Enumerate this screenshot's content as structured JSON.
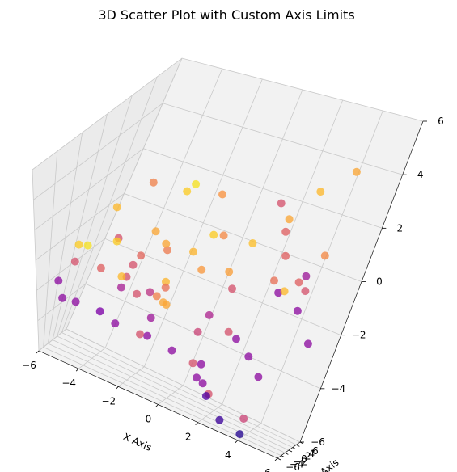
{
  "chart_data": {
    "type": "scatter",
    "title": "3D Scatter Plot with Custom Axis Limits",
    "xlabel": "X Axis",
    "ylabel": "Y Axis",
    "zlabel": "",
    "xlim": [
      -6,
      6
    ],
    "ylim": [
      -6,
      6
    ],
    "zlim": [
      -6,
      6
    ],
    "xticks": [
      -6,
      -4,
      -2,
      0,
      2,
      4,
      6
    ],
    "yticks": [
      -6,
      -4,
      -2,
      0,
      2,
      4,
      6
    ],
    "zticks": [
      -6,
      -4,
      -2,
      0,
      2,
      4,
      6
    ],
    "xtick_labels": [
      "−6",
      "−4",
      "−2",
      "0",
      "2",
      "4",
      "6"
    ],
    "ytick_labels": [
      "−6",
      "−4",
      "−2",
      "0",
      "2",
      "4",
      "6"
    ],
    "ztick_labels": [
      "−6",
      "−4",
      "−2",
      "0",
      "2",
      "4",
      "6"
    ],
    "colormap": "plasma",
    "grid": true,
    "points": [
      [
        -0.4,
        -2.7,
        4.8,
        0.9
      ],
      [
        0.7,
        -1.4,
        4.4,
        0.75
      ],
      [
        -1.1,
        -0.2,
        3.9,
        0.95
      ],
      [
        -3.2,
        0.2,
        3.2,
        0.7
      ],
      [
        -3.7,
        -2.3,
        2.7,
        0.85
      ],
      [
        4.2,
        5.0,
        4.0,
        0.8
      ],
      [
        3.3,
        3.7,
        3.4,
        0.85
      ],
      [
        -0.8,
        -3.3,
        2.1,
        0.8
      ],
      [
        0.6,
        0.2,
        1.8,
        0.72
      ],
      [
        3.2,
        1.8,
        1.2,
        0.6
      ],
      [
        1.8,
        0.9,
        1.6,
        0.87
      ],
      [
        -4.9,
        -3.3,
        0.5,
        0.9
      ],
      [
        -4.7,
        -2.6,
        0.3,
        0.95
      ],
      [
        -2.6,
        -2.1,
        -0.1,
        0.55
      ],
      [
        -2.3,
        -0.6,
        1.3,
        0.8
      ],
      [
        -0.4,
        -0.5,
        0.9,
        0.84
      ],
      [
        -2.5,
        -3.2,
        -0.4,
        0.55
      ],
      [
        -1.2,
        -3.6,
        -0.6,
        0.45
      ],
      [
        3.8,
        3.3,
        -0.1,
        0.6
      ],
      [
        3.3,
        3.2,
        -0.6,
        0.85
      ],
      [
        1.9,
        5.5,
        0.9,
        0.6
      ],
      [
        1.4,
        4.8,
        2.1,
        0.55
      ],
      [
        -1.8,
        0.2,
        0.3,
        0.68
      ],
      [
        -3.4,
        -2.5,
        1.0,
        0.9
      ],
      [
        -3.7,
        -1.4,
        0.7,
        0.55
      ],
      [
        -4.9,
        -3.6,
        -0.4,
        0.55
      ],
      [
        -4.3,
        -1.2,
        -1.2,
        0.6
      ],
      [
        -3.0,
        -2.0,
        -1.5,
        0.38
      ],
      [
        -1.2,
        -2.8,
        -2.2,
        0.35
      ],
      [
        -1.4,
        -0.3,
        -1.0,
        0.84
      ],
      [
        -2.6,
        -1.1,
        0.1,
        0.62
      ],
      [
        -0.9,
        -1.4,
        -1.7,
        0.8
      ],
      [
        1.2,
        1.9,
        -0.9,
        0.55
      ],
      [
        3.7,
        4.8,
        -0.2,
        0.35
      ],
      [
        2.7,
        5.0,
        -1.2,
        0.3
      ],
      [
        3.9,
        4.7,
        -1.5,
        0.3
      ],
      [
        4.8,
        5.3,
        -2.6,
        0.3
      ],
      [
        1.6,
        2.0,
        -2.7,
        0.55
      ],
      [
        0.9,
        -0.1,
        -1.8,
        0.4
      ],
      [
        0.3,
        1.5,
        -3.1,
        0.5
      ],
      [
        1.7,
        4.3,
        -3.3,
        0.3
      ],
      [
        -3.5,
        -3.5,
        -2.7,
        0.25
      ],
      [
        -4.5,
        -4.4,
        -2.4,
        0.3
      ],
      [
        -5.5,
        -4.0,
        -1.7,
        0.3
      ],
      [
        -5.3,
        -3.8,
        -2.7,
        0.3
      ],
      [
        -2.7,
        -3.6,
        -3.0,
        0.3
      ],
      [
        -1.5,
        -3.4,
        -3.1,
        0.55
      ],
      [
        -1.4,
        -2.0,
        -3.4,
        0.3
      ],
      [
        -0.2,
        -1.6,
        -3.7,
        0.3
      ],
      [
        0.8,
        -1.0,
        -4.0,
        0.55
      ],
      [
        1.1,
        -0.9,
        -4.6,
        0.3
      ],
      [
        0.9,
        1.2,
        -4.3,
        0.3
      ],
      [
        2.7,
        2.9,
        -3.5,
        0.3
      ],
      [
        3.5,
        2.3,
        -4.0,
        0.3
      ],
      [
        1.8,
        -0.8,
        -5.1,
        0.55
      ],
      [
        1.6,
        -2.2,
        -4.5,
        0.3
      ],
      [
        2.1,
        -4.1,
        -4.7,
        0.15
      ],
      [
        2.8,
        -3.5,
        -5.7,
        0.1
      ],
      [
        3.8,
        -2.9,
        -6.0,
        0.05
      ],
      [
        4.1,
        -4.8,
        -4.9,
        0.5
      ],
      [
        0.3,
        -1.0,
        0.4,
        0.76
      ],
      [
        1.1,
        0.8,
        0.1,
        0.78
      ],
      [
        -0.3,
        1.7,
        1.1,
        0.9
      ],
      [
        -1.3,
        -1.9,
        -1.3,
        0.7
      ],
      [
        -2.2,
        -2.1,
        -1.5,
        0.55
      ],
      [
        -0.8,
        -2.5,
        -0.5,
        0.65
      ],
      [
        -0.6,
        -3.3,
        -1.0,
        0.8
      ],
      [
        -2.4,
        -4.3,
        0.0,
        0.85
      ],
      [
        2.4,
        3.4,
        2.1,
        0.8
      ],
      [
        2.8,
        2.7,
        -0.2,
        0.65
      ],
      [
        4.0,
        4.3,
        -0.6,
        0.55
      ],
      [
        4.4,
        4.0,
        1.0,
        0.72
      ]
    ]
  }
}
